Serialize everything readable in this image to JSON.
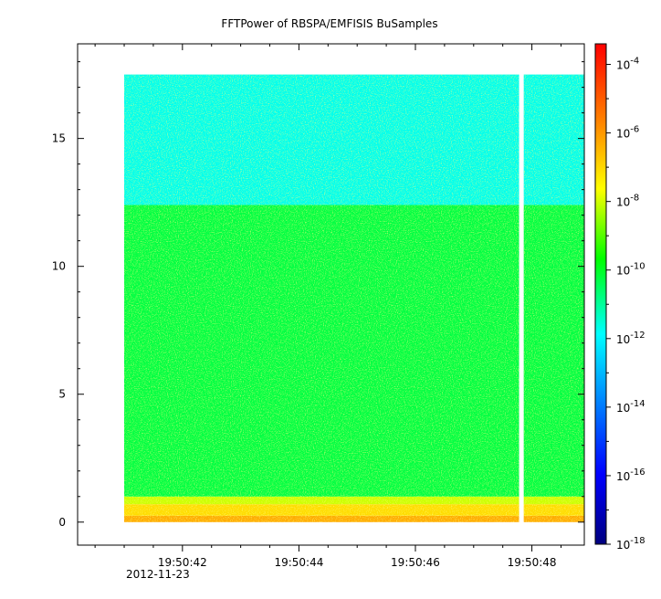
{
  "chart_data": {
    "type": "heatmap",
    "title": "FFTPower of RBSPA/EMFISIS  BuSamples",
    "xlabel": "",
    "ylabel": "",
    "x_tick_labels": [
      "19:50:42",
      "19:50:44",
      "19:50:46",
      "19:50:48"
    ],
    "x_tick_sublabel": "2012-11-23",
    "x_ticks_seconds": [
      42,
      44,
      46,
      48
    ],
    "xlim_seconds": [
      40.2,
      48.9
    ],
    "y_ticks": [
      0,
      5,
      10,
      15
    ],
    "ylim": [
      -0.9,
      18.7
    ],
    "data_start_seconds": 41.0,
    "data_end_seconds": 48.9,
    "data_gap_seconds": [
      47.78,
      47.86
    ],
    "frequency_max": 17.5,
    "power_bands": [
      {
        "y_from": 0.0,
        "y_to": 0.25,
        "power_log10": -6.2
      },
      {
        "y_from": 0.25,
        "y_to": 0.7,
        "power_log10": -7.0
      },
      {
        "y_from": 0.7,
        "y_to": 1.0,
        "power_log10": -8.0
      },
      {
        "y_from": 1.0,
        "y_to": 12.4,
        "power_log10": -10.2
      },
      {
        "y_from": 12.4,
        "y_to": 17.5,
        "power_log10": -11.6
      }
    ],
    "colorbar": {
      "scale": "log",
      "range_log10": [
        -18,
        -3.4
      ],
      "tick_exponents": [
        -4,
        -6,
        -8,
        -10,
        -12,
        -14,
        -16,
        -18
      ],
      "tick_base": "10",
      "colors": [
        "#00007f",
        "#0000ff",
        "#007fff",
        "#00ffff",
        "#00ff00",
        "#ffff00",
        "#ff7f00",
        "#ff0000"
      ]
    }
  }
}
